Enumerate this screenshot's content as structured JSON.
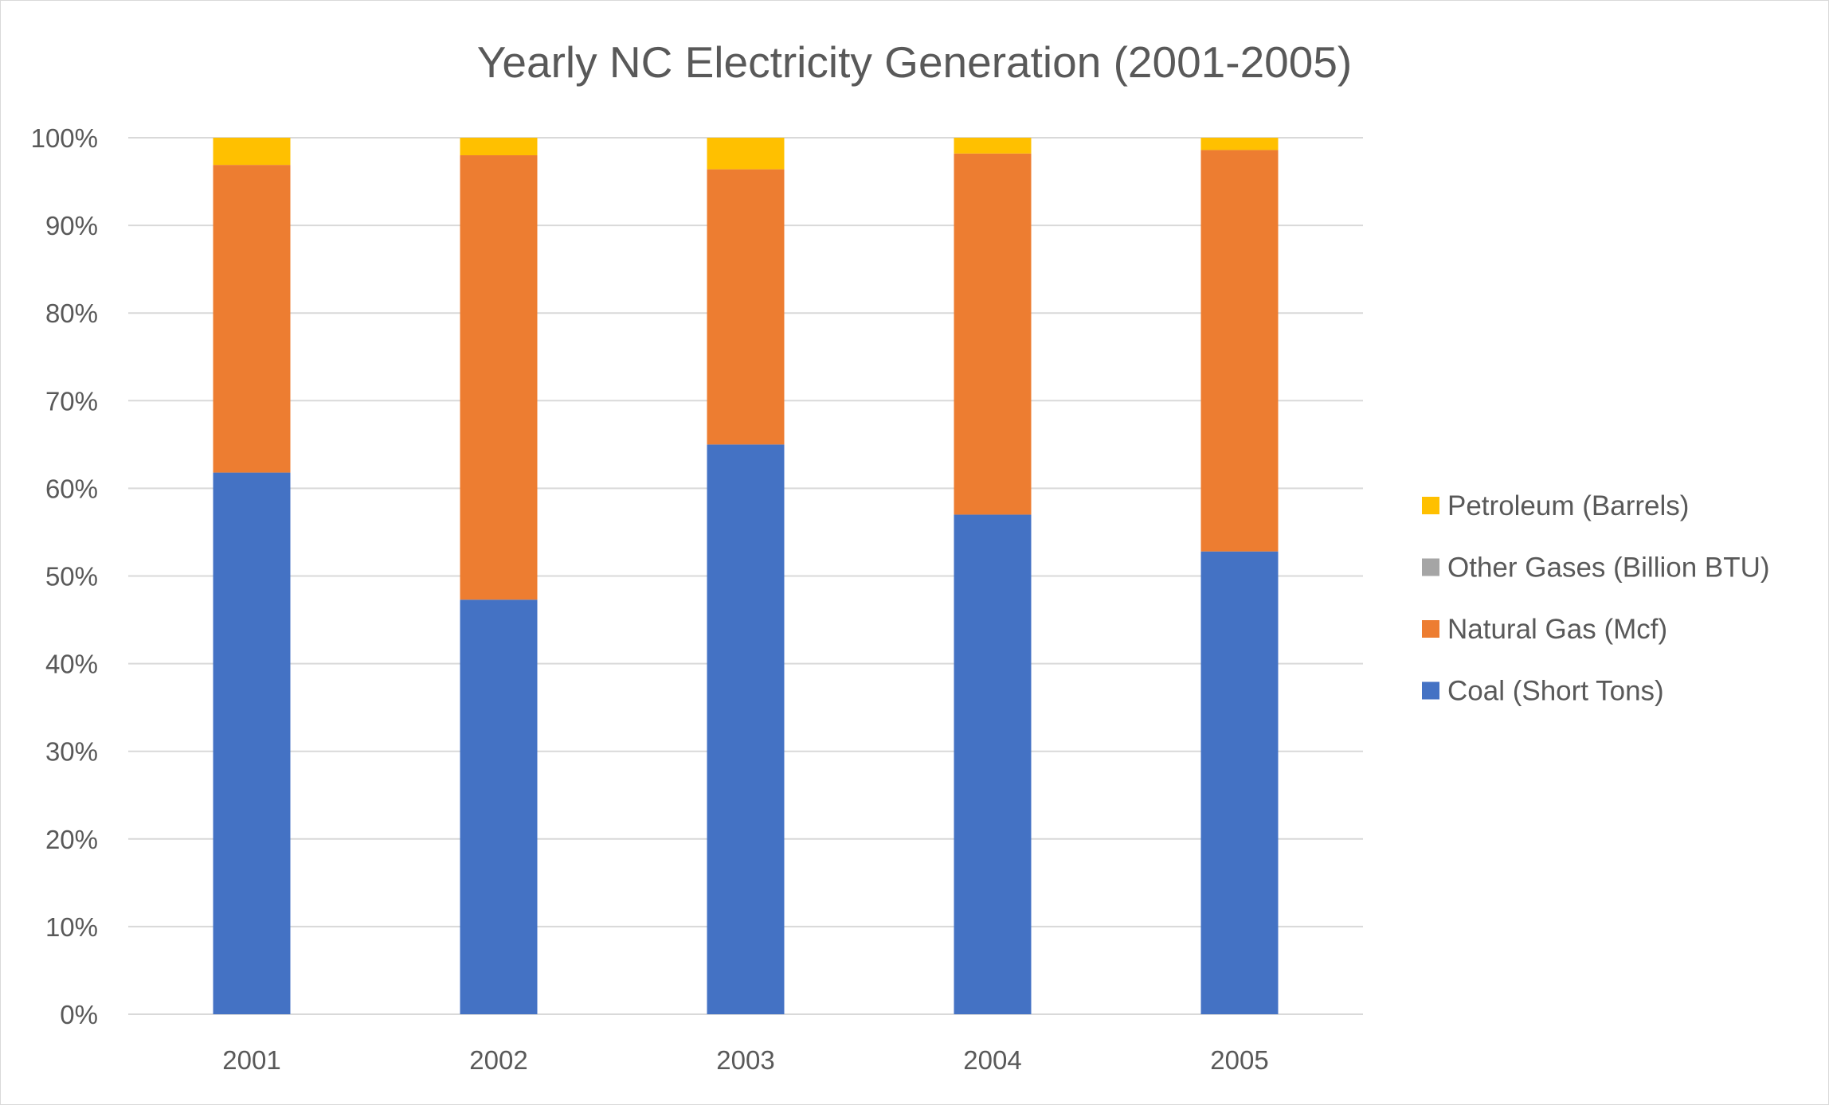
{
  "chart_data": {
    "type": "bar",
    "stacked": "percent",
    "title": "Yearly NC Electricity Generation (2001-2005)",
    "xlabel": "",
    "ylabel": "",
    "categories": [
      "2001",
      "2002",
      "2003",
      "2004",
      "2005"
    ],
    "ylim": [
      0,
      100
    ],
    "y_ticks": [
      "0%",
      "10%",
      "20%",
      "30%",
      "40%",
      "50%",
      "60%",
      "70%",
      "80%",
      "90%",
      "100%"
    ],
    "grid": true,
    "legend_position": "right",
    "series": [
      {
        "name": "Coal (Short Tons)",
        "color": "#4472C4",
        "values": [
          61.8,
          47.3,
          65.0,
          57.0,
          52.8
        ]
      },
      {
        "name": "Natural Gas (Mcf)",
        "color": "#ED7D31",
        "values": [
          35.1,
          50.7,
          31.4,
          41.2,
          45.8
        ]
      },
      {
        "name": "Other Gases (Billion BTU)",
        "color": "#A5A5A5",
        "values": [
          0,
          0,
          0,
          0,
          0
        ]
      },
      {
        "name": "Petroleum (Barrels)",
        "color": "#FFC000",
        "values": [
          3.1,
          2.0,
          3.6,
          1.8,
          1.4
        ]
      }
    ],
    "legend_order": [
      "Petroleum (Barrels)",
      "Other Gases (Billion BTU)",
      "Natural Gas (Mcf)",
      "Coal (Short Tons)"
    ]
  }
}
